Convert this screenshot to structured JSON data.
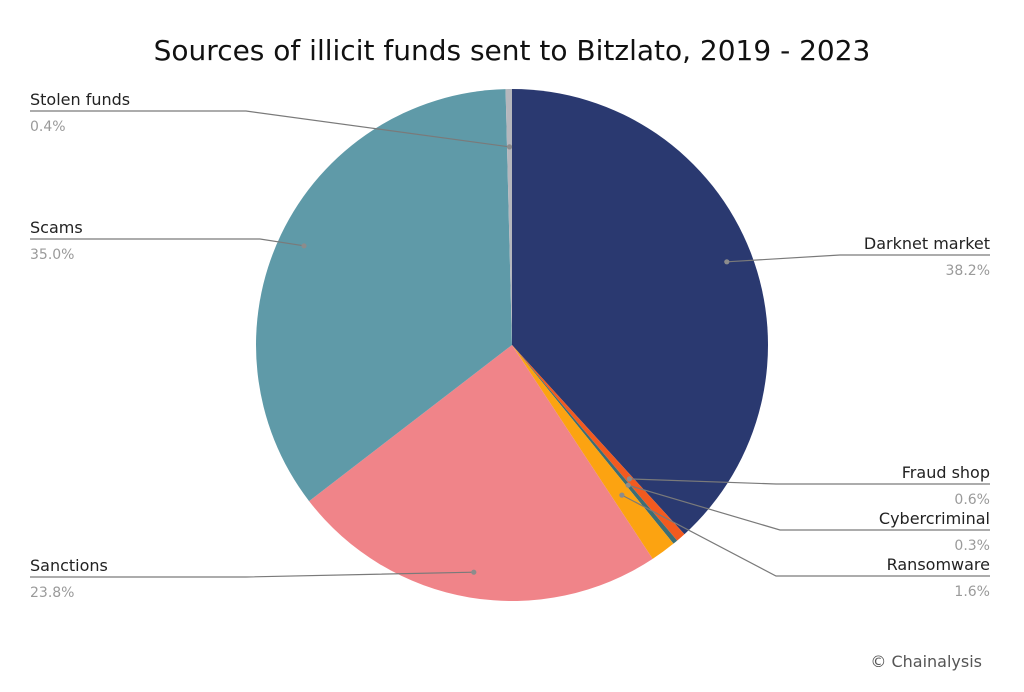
{
  "chart_data": {
    "type": "pie",
    "title": "Sources of illicit funds sent to Bitzlato, 2019 - 2023",
    "credit": "© Chainalysis",
    "slices": [
      {
        "name": "Darknet market",
        "value": 38.2,
        "label": "38.2%",
        "color": "#2a3970"
      },
      {
        "name": "Fraud shop",
        "value": 0.6,
        "label": "0.6%",
        "color": "#f25a1f"
      },
      {
        "name": "Cybercriminal",
        "value": 0.3,
        "label": "0.3%",
        "color": "#3d6e74"
      },
      {
        "name": "Ransomware",
        "value": 1.6,
        "label": "1.6%",
        "color": "#fca311"
      },
      {
        "name": "Sanctions",
        "value": 23.8,
        "label": "23.8%",
        "color": "#f08489"
      },
      {
        "name": "Scams",
        "value": 35.0,
        "label": "35.0%",
        "color": "#5f9aa8"
      },
      {
        "name": "Stolen funds",
        "value": 0.4,
        "label": "0.4%",
        "color": "#b5b7bd"
      }
    ]
  }
}
